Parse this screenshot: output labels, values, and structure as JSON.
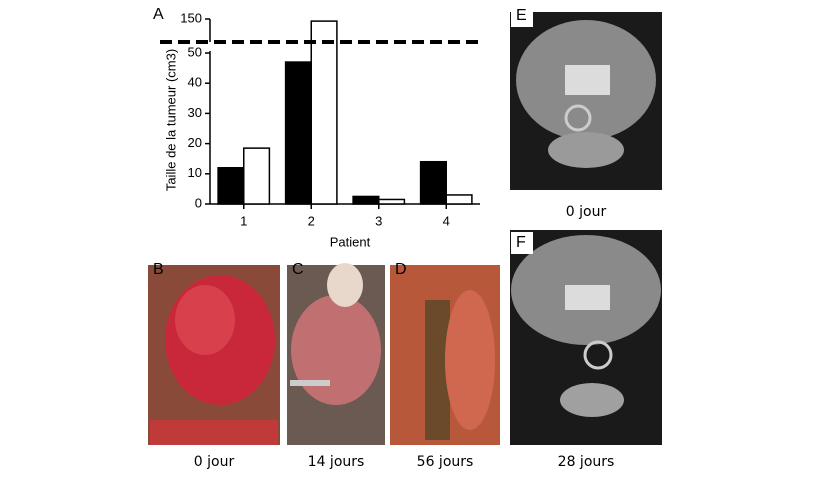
{
  "chart_data": {
    "type": "bar",
    "panel": "A",
    "categories": [
      "1",
      "2",
      "3",
      "4"
    ],
    "series": [
      {
        "color": "#000000",
        "values": [
          12,
          47,
          2.5,
          14
        ]
      },
      {
        "color": "#ffffff",
        "values": [
          18.5,
          149,
          1.5,
          3
        ]
      }
    ],
    "x_label": "Patient",
    "y_label": "Taille de la tumeur (cm3)",
    "ylim": [
      0,
      50
    ],
    "yticks": [
      0,
      10,
      20,
      30,
      40,
      50
    ],
    "y_upper_lim": [
      140,
      150
    ],
    "y_upper_ticks": [
      150
    ],
    "axis_break": true
  },
  "panels": [
    {
      "letter": "B",
      "caption": "0 jour"
    },
    {
      "letter": "C",
      "caption": "14 jours"
    },
    {
      "letter": "D",
      "caption": "56 jours"
    },
    {
      "letter": "E",
      "caption": "0 jour"
    },
    {
      "letter": "F",
      "caption": "28 jours"
    }
  ]
}
